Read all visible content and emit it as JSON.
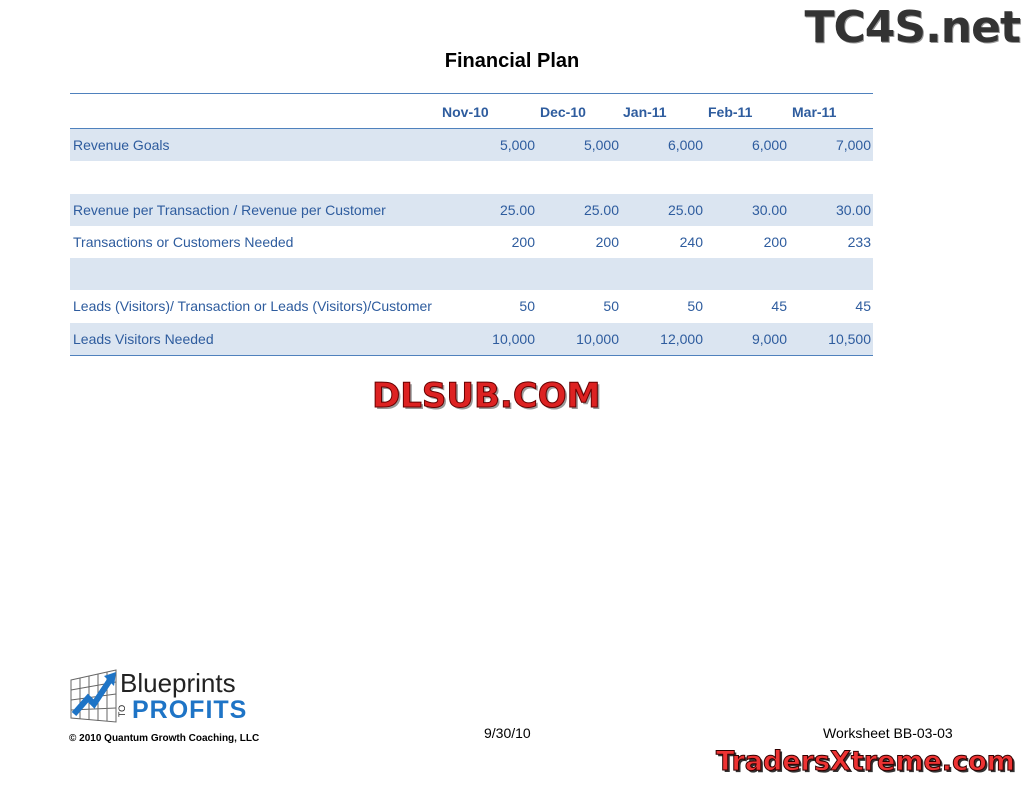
{
  "title": "Financial Plan",
  "columns": [
    "Nov-10",
    "Dec-10",
    "Jan-11",
    "Feb-11",
    "Mar-11"
  ],
  "rows": [
    {
      "label": "Revenue Goals",
      "values": [
        "5,000",
        "5,000",
        "6,000",
        "6,000",
        "7,000"
      ],
      "shaded": true
    },
    {
      "label": "",
      "values": [
        "",
        "",
        "",
        "",
        ""
      ],
      "shaded": false
    },
    {
      "label": "Revenue per Transaction / Revenue per Customer",
      "values": [
        "25.00",
        "25.00",
        "25.00",
        "30.00",
        "30.00"
      ],
      "shaded": true
    },
    {
      "label": "Transactions or Customers Needed",
      "values": [
        "200",
        "200",
        "240",
        "200",
        "233"
      ],
      "shaded": false
    },
    {
      "label": "",
      "values": [
        "",
        "",
        "",
        "",
        ""
      ],
      "shaded": true
    },
    {
      "label": "Leads (Visitors)/ Transaction or Leads (Visitors)/Customer",
      "values": [
        "50",
        "50",
        "50",
        "45",
        "45"
      ],
      "shaded": false
    },
    {
      "label": "Leads Visitors Needed",
      "values": [
        "10,000",
        "10,000",
        "12,000",
        "9,000",
        "10,500"
      ],
      "shaded": true
    }
  ],
  "footer": {
    "date": "9/30/10",
    "worksheet": "Worksheet BB-03-03",
    "copyright": "© 2010 Quantum Growth Coaching, LLC",
    "logo_top": "Blueprints",
    "logo_to": "TO",
    "logo_bottom": "PROFITS"
  },
  "watermarks": {
    "top_right": "TC4S.net",
    "center": "DLSUB.COM",
    "bottom_right": "TradersXtreme.com"
  },
  "colors": {
    "text": "#2e5c9e",
    "shade": "#dbe5f1",
    "rule": "#4f81bd"
  }
}
